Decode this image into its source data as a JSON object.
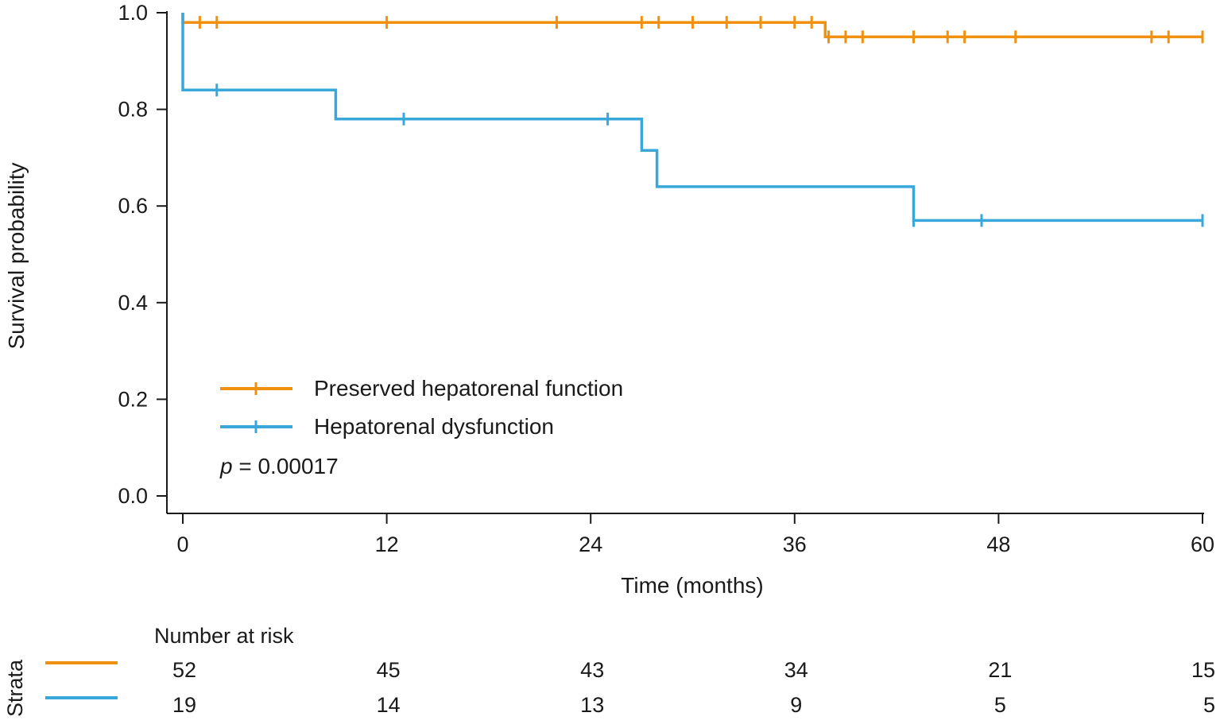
{
  "chart_data": {
    "type": "line",
    "subtype": "kaplan-meier",
    "title": "",
    "xlabel": "Time (months)",
    "ylabel": "Survival probability",
    "xlim": [
      0,
      60
    ],
    "ylim": [
      0,
      1
    ],
    "xticks": [
      0,
      12,
      24,
      36,
      48,
      60
    ],
    "xtick_labels": [
      "0",
      "12",
      "24",
      "36",
      "48",
      "60"
    ],
    "yticks": [
      0,
      0.2,
      0.4,
      0.6,
      0.8,
      1.0
    ],
    "ytick_labels": [
      "0.0",
      "0.2",
      "0.4",
      "0.6",
      "0.8",
      "1.0"
    ],
    "legend_position": "bottom-left",
    "p_value_label": "p",
    "p_value_text": " = 0.00017",
    "series": [
      {
        "name": "Preserved hepatorenal function",
        "color": "#F0900F",
        "steps": [
          [
            0,
            1.0
          ],
          [
            0,
            0.98
          ],
          [
            37.8,
            0.98
          ],
          [
            37.8,
            0.95
          ],
          [
            60,
            0.95
          ]
        ],
        "censor": [
          [
            1,
            0.98
          ],
          [
            2,
            0.98
          ],
          [
            12,
            0.98
          ],
          [
            22,
            0.98
          ],
          [
            27,
            0.98
          ],
          [
            28,
            0.98
          ],
          [
            30,
            0.98
          ],
          [
            32,
            0.98
          ],
          [
            34,
            0.98
          ],
          [
            36,
            0.98
          ],
          [
            37,
            0.98
          ],
          [
            38,
            0.95
          ],
          [
            39,
            0.95
          ],
          [
            40,
            0.95
          ],
          [
            43,
            0.95
          ],
          [
            45,
            0.95
          ],
          [
            46,
            0.95
          ],
          [
            49,
            0.95
          ],
          [
            57,
            0.95
          ],
          [
            58,
            0.95
          ],
          [
            60,
            0.95
          ]
        ]
      },
      {
        "name": "Hepatorenal dysfunction",
        "color": "#3AA7DB",
        "steps": [
          [
            0,
            1.0
          ],
          [
            0,
            0.84
          ],
          [
            9.0,
            0.84
          ],
          [
            9.0,
            0.78
          ],
          [
            27.0,
            0.78
          ],
          [
            27.0,
            0.715
          ],
          [
            27.9,
            0.715
          ],
          [
            27.9,
            0.64
          ],
          [
            43.0,
            0.64
          ],
          [
            43.0,
            0.57
          ],
          [
            60,
            0.57
          ]
        ],
        "censor": [
          [
            2,
            0.84
          ],
          [
            13,
            0.78
          ],
          [
            25,
            0.78
          ],
          [
            43,
            0.57
          ],
          [
            47,
            0.57
          ],
          [
            60,
            0.57
          ]
        ]
      }
    ],
    "risk_table": {
      "title": "Number at risk",
      "strata_label": "Strata",
      "times": [
        0,
        12,
        24,
        36,
        48,
        60
      ],
      "rows": [
        {
          "color": "#F0900F",
          "values": [
            "52",
            "45",
            "43",
            "34",
            "21",
            "15"
          ]
        },
        {
          "color": "#3AA7DB",
          "values": [
            "19",
            "14",
            "13",
            "9",
            "5",
            "5"
          ]
        }
      ]
    }
  }
}
